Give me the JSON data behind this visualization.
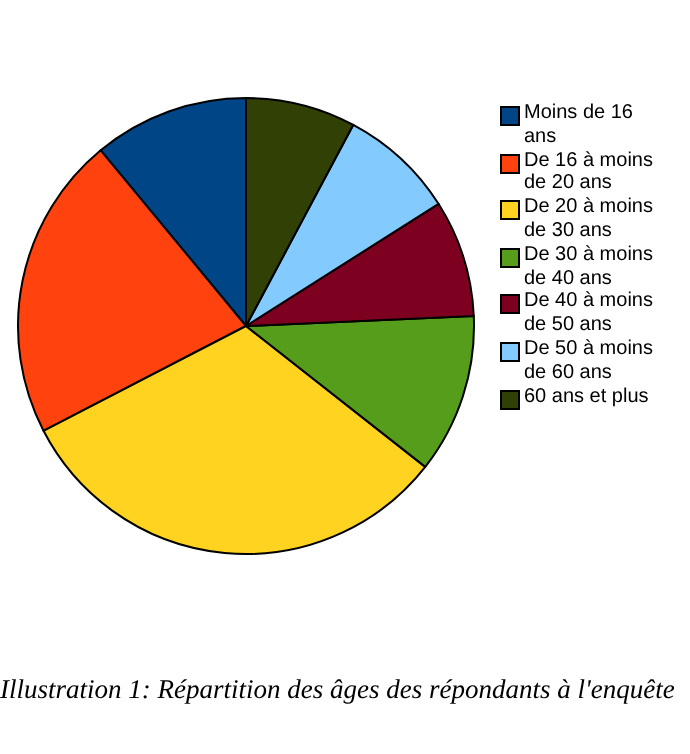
{
  "chart_data": {
    "type": "pie",
    "categories": [
      "Moins de 16 ans",
      "De 16 à moins de 20 ans",
      "De 20 à moins de 30 ans",
      "De 30 à moins de 40 ans",
      "De 40 à moins de 50 ans",
      "De 50 à moins de 60 ans",
      "60 ans et plus"
    ],
    "values": [
      11,
      21.6,
      31.8,
      11.3,
      8.3,
      8.2,
      7.8
    ],
    "colors": [
      "#004586",
      "#ff420e",
      "#ffd320",
      "#579d1c",
      "#7e0021",
      "#83caff",
      "#314004"
    ],
    "legend": "right",
    "annotations": [
      "Illustration 1: Répartition des âges des répondants à l'enquête"
    ]
  }
}
